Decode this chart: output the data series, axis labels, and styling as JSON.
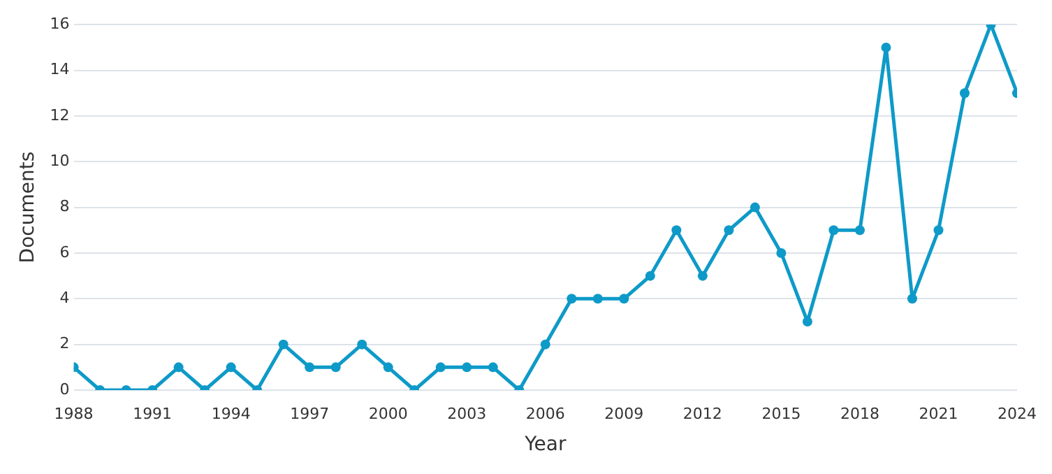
{
  "chart_data": {
    "type": "line",
    "xlabel": "Year",
    "ylabel": "Documents",
    "x": [
      1988,
      1989,
      1990,
      1991,
      1992,
      1993,
      1994,
      1995,
      1996,
      1997,
      1998,
      1999,
      2000,
      2001,
      2002,
      2003,
      2004,
      2005,
      2006,
      2007,
      2008,
      2009,
      2010,
      2011,
      2012,
      2013,
      2014,
      2015,
      2016,
      2017,
      2018,
      2019,
      2020,
      2021,
      2022,
      2023,
      2024
    ],
    "series": [
      {
        "color": "#0e9ac8",
        "values": [
          1,
          0,
          0,
          0,
          1,
          0,
          1,
          0,
          2,
          1,
          1,
          2,
          1,
          0,
          1,
          1,
          1,
          0,
          2,
          4,
          4,
          4,
          5,
          7,
          5,
          7,
          8,
          6,
          3,
          7,
          7,
          15,
          4,
          7,
          13,
          16,
          13
        ]
      }
    ],
    "xlim": [
      1988,
      2024
    ],
    "xticks": [
      1988,
      1991,
      1994,
      1997,
      2000,
      2003,
      2006,
      2009,
      2012,
      2015,
      2018,
      2021,
      2024
    ],
    "ylim": [
      0,
      16
    ],
    "yticks": [
      0,
      2,
      4,
      6,
      8,
      10,
      12,
      14,
      16
    ],
    "grid": "y",
    "legend": false,
    "marker": "circle",
    "line_style": "solid"
  }
}
